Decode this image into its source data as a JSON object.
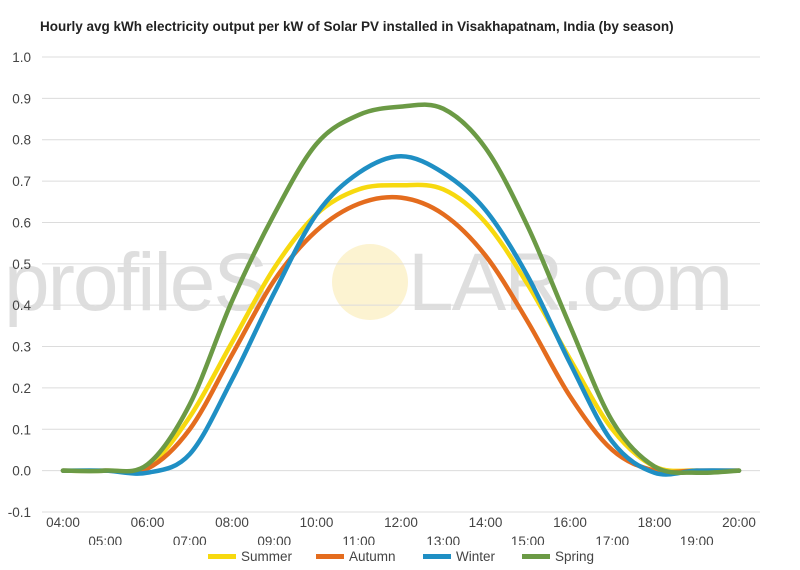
{
  "chart_data": {
    "type": "line",
    "title": "Hourly avg kWh electricity output per kW of Solar PV installed in Visakhapatnam, India (by season)",
    "xlabel": "",
    "ylabel": "",
    "ylim": [
      -0.1,
      1.0
    ],
    "yticks": [
      "1.0",
      "0.9",
      "0.8",
      "0.7",
      "0.6",
      "0.5",
      "0.4",
      "0.3",
      "0.2",
      "0.1",
      "0.0",
      "-0.1"
    ],
    "categories": [
      "04:00",
      "05:00",
      "06:00",
      "07:00",
      "08:00",
      "09:00",
      "10:00",
      "11:00",
      "12:00",
      "13:00",
      "14:00",
      "15:00",
      "16:00",
      "17:00",
      "18:00",
      "19:00",
      "20:00"
    ],
    "grid": true,
    "legend_position": "bottom",
    "series": [
      {
        "name": "Summer",
        "color": "#f7d90f",
        "values": [
          0.0,
          0.0,
          0.01,
          0.13,
          0.31,
          0.49,
          0.62,
          0.68,
          0.69,
          0.68,
          0.6,
          0.45,
          0.27,
          0.1,
          0.01,
          0.0,
          0.0
        ]
      },
      {
        "name": "Autumn",
        "color": "#e46c1e",
        "values": [
          0.0,
          0.0,
          0.005,
          0.1,
          0.28,
          0.46,
          0.58,
          0.645,
          0.66,
          0.62,
          0.52,
          0.36,
          0.18,
          0.05,
          0.0,
          0.0,
          0.0
        ]
      },
      {
        "name": "Winter",
        "color": "#1f8fc4",
        "values": [
          0.0,
          0.0,
          -0.005,
          0.04,
          0.22,
          0.43,
          0.62,
          0.72,
          0.76,
          0.72,
          0.63,
          0.47,
          0.26,
          0.07,
          -0.005,
          0.0,
          0.0
        ]
      },
      {
        "name": "Spring",
        "color": "#6b9a45",
        "values": [
          0.0,
          0.0,
          0.015,
          0.16,
          0.41,
          0.62,
          0.79,
          0.86,
          0.88,
          0.875,
          0.78,
          0.59,
          0.35,
          0.12,
          0.01,
          -0.005,
          0.0
        ]
      }
    ]
  },
  "watermark": {
    "left": "profileS",
    "right": "LAR.com"
  }
}
